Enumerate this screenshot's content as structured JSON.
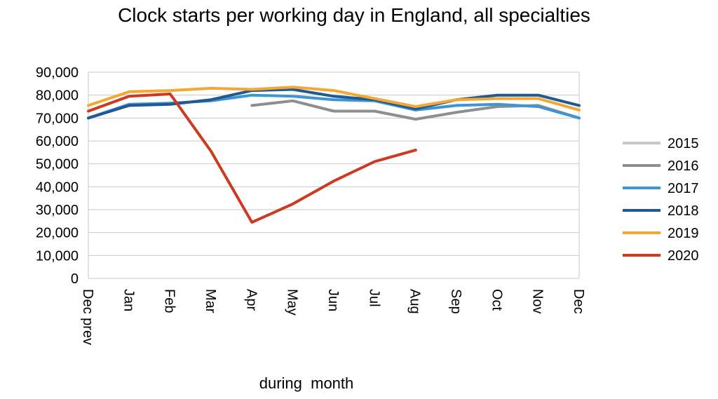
{
  "chart_data": {
    "type": "line",
    "title": "Clock starts per working day in England, all specialties",
    "xlabel": "during  month",
    "ylabel": "",
    "ylim": [
      0,
      90000
    ],
    "yticks": [
      0,
      10000,
      20000,
      30000,
      40000,
      50000,
      60000,
      70000,
      80000,
      90000
    ],
    "ytick_labels": [
      "0",
      "10,000",
      "20,000",
      "30,000",
      "40,000",
      "50,000",
      "60,000",
      "70,000",
      "80,000",
      "90,000"
    ],
    "categories": [
      "Dec prev",
      "Jan",
      "Feb",
      "Mar",
      "Apr",
      "May",
      "Jun",
      "Jul",
      "Aug",
      "Sep",
      "Oct",
      "Nov",
      "Dec"
    ],
    "grid": true,
    "legend": "right",
    "series": [
      {
        "name": "2015",
        "color": "#c8c8c8",
        "values": [
          null,
          null,
          null,
          null,
          null,
          null,
          null,
          null,
          null,
          null,
          null,
          null,
          null
        ]
      },
      {
        "name": "2016",
        "color": "#8e8e8e",
        "values": [
          null,
          null,
          null,
          null,
          75500,
          77500,
          73000,
          73000,
          69500,
          72500,
          75000,
          75500,
          70000
        ]
      },
      {
        "name": "2017",
        "color": "#3e95d1",
        "values": [
          70000,
          76000,
          76500,
          77500,
          80000,
          79500,
          78000,
          77500,
          73500,
          75500,
          76000,
          75000,
          70000
        ]
      },
      {
        "name": "2018",
        "color": "#1f5a94",
        "values": [
          70000,
          75500,
          76000,
          78000,
          82000,
          82500,
          79500,
          78000,
          74000,
          78000,
          80000,
          80000,
          75500
        ]
      },
      {
        "name": "2019",
        "color": "#f3a833",
        "values": [
          75500,
          81500,
          82000,
          83000,
          82500,
          83500,
          82000,
          78500,
          75000,
          78000,
          78500,
          78500,
          73500
        ]
      },
      {
        "name": "2020",
        "color": "#cc3a22",
        "values": [
          73000,
          79500,
          80500,
          55500,
          24500,
          32500,
          42500,
          51000,
          56000,
          null,
          null,
          null,
          null
        ]
      }
    ]
  }
}
